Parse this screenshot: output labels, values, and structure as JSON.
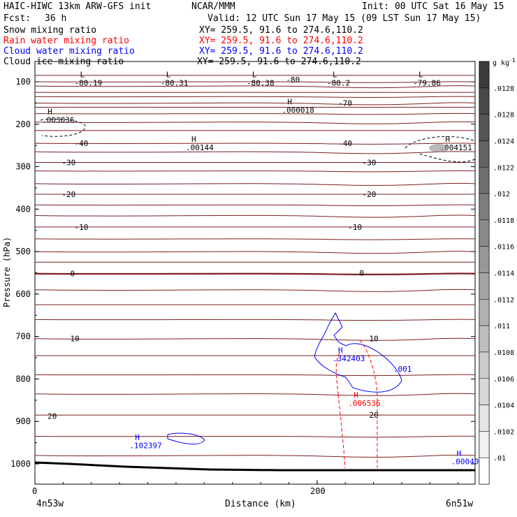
{
  "header": {
    "model": "HAIC-HIWC 13km ARW-GFS init",
    "org": "NCAR/MMM",
    "init": "Init: 00 UTC Sat 16 May 15",
    "fcst_label": "Fcst:",
    "fcst_value": "36 h",
    "valid": "Valid: 12 UTC Sun 17 May 15 (09 LST Sun 17 May 15)",
    "fields": [
      {
        "name": "Snow mixing ratio",
        "xy": "XY= 259.5, 91.6 to 274.6,110.2",
        "color": "#000000"
      },
      {
        "name": "Rain water mixing ratio",
        "xy": "XY= 259.5, 91.6 to 274.6,110.2",
        "color": "#ff0000"
      },
      {
        "name": "Cloud water mixing ratio",
        "xy": "XY= 259.5, 91.6 to 274.6,110.2",
        "color": "#0000ff"
      },
      {
        "name": "Cloud ice mixing ratio",
        "xy": "XY= 259.5, 91.6 to 274.6,110.2",
        "color": "#000000"
      }
    ]
  },
  "chart_data": {
    "type": "contour",
    "ylabel": "Pressure (hPa)",
    "xlabel": "Distance (km)",
    "y_ticks": [
      "100",
      "200",
      "300",
      "400",
      "500",
      "600",
      "700",
      "800",
      "900",
      "1000"
    ],
    "x_ticks": [
      "0",
      "200"
    ],
    "x_left_label": "4n53w",
    "x_right_label": "6n51w",
    "xlim": [
      0,
      312
    ],
    "ylim": [
      1050,
      50
    ],
    "colorbar": {
      "unit": "g kg",
      "unit_exp": "-1",
      "labels": [
        ".0128",
        ".0128",
        ".0124",
        ".0122",
        ".012",
        ".0118",
        ".0116",
        ".0114",
        ".0112",
        ".011",
        ".0108",
        ".0106",
        ".0104",
        ".0102",
        ".01"
      ]
    },
    "temperature_contour_labels": [
      {
        "text": "-80",
        "x": 178,
        "p": 95
      },
      {
        "text": "-70",
        "x": 215,
        "p": 150
      },
      {
        "text": "-40",
        "x": 28,
        "p": 245
      },
      {
        "text": "-40",
        "x": 215,
        "p": 245
      },
      {
        "text": "-30",
        "x": 19,
        "p": 290
      },
      {
        "text": "-30",
        "x": 232,
        "p": 290
      },
      {
        "text": "-20",
        "x": 19,
        "p": 365
      },
      {
        "text": "-20",
        "x": 232,
        "p": 365
      },
      {
        "text": "-10",
        "x": 28,
        "p": 442
      },
      {
        "text": "-10",
        "x": 222,
        "p": 442
      },
      {
        "text": "0",
        "x": 25,
        "p": 552
      },
      {
        "text": "0",
        "x": 230,
        "p": 550
      },
      {
        "text": "10",
        "x": 25,
        "p": 705
      },
      {
        "text": "10",
        "x": 237,
        "p": 705
      },
      {
        "text": "20",
        "x": 9,
        "p": 887
      },
      {
        "text": "20",
        "x": 237,
        "p": 885
      }
    ],
    "extrema": [
      {
        "kind": "L",
        "value": "-80.19",
        "x": 28,
        "p": 96
      },
      {
        "kind": "L",
        "value": "-80.31",
        "x": 89,
        "p": 96
      },
      {
        "kind": "L",
        "value": "-80.38",
        "x": 150,
        "p": 96
      },
      {
        "kind": "L",
        "value": "-80.2",
        "x": 207,
        "p": 96
      },
      {
        "kind": "L",
        "value": "-79.86",
        "x": 268,
        "p": 96
      },
      {
        "kind": "H",
        "value": ".000018",
        "x": 175,
        "p": 160
      },
      {
        "kind": "H",
        "value": ".003036",
        "x": 5,
        "p": 183
      },
      {
        "kind": "H",
        "value": ".00144",
        "x": 107,
        "p": 248
      },
      {
        "kind": "H",
        "value": ".004151",
        "x": 287,
        "p": 248
      },
      {
        "kind": "H",
        "value": ".342403",
        "x": 211,
        "p": 745,
        "color": "#0000ff"
      },
      {
        "kind": "",
        "value": ".001",
        "x": 254,
        "p": 770,
        "color": "#0000ff"
      },
      {
        "kind": "H",
        "value": ".006536",
        "x": 222,
        "p": 850,
        "color": "#ff0000"
      },
      {
        "kind": "H",
        "value": ".102397",
        "x": 67,
        "p": 950,
        "color": "#0000ff"
      },
      {
        "kind": "H",
        "value": ".00040",
        "x": 295,
        "p": 988,
        "color": "#0000ff"
      }
    ]
  }
}
